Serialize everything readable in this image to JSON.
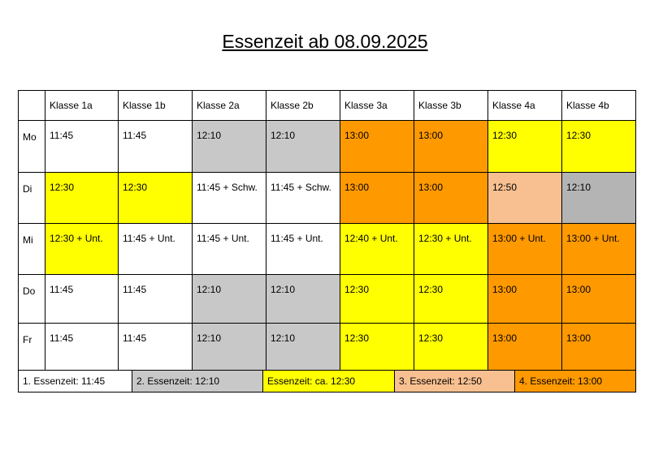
{
  "title": "Essenzeit ab 08.09.2025",
  "table": {
    "columns": [
      "Klasse 1a",
      "Klasse 1b",
      "Klasse 2a",
      "Klasse 2b",
      "Klasse 3a",
      "Klasse 3b",
      "Klasse 4a",
      "Klasse 4b"
    ],
    "rows": [
      {
        "day": "Mo",
        "cells": [
          {
            "text": "11:45",
            "color": "#ffffff"
          },
          {
            "text": "11:45",
            "color": "#ffffff"
          },
          {
            "text": "12:10",
            "color": "#c8c8c8"
          },
          {
            "text": "12:10",
            "color": "#c8c8c8"
          },
          {
            "text": "13:00",
            "color": "#ff9900"
          },
          {
            "text": "13:00",
            "color": "#ff9900"
          },
          {
            "text": "12:30",
            "color": "#ffff00"
          },
          {
            "text": "12:30",
            "color": "#ffff00"
          }
        ]
      },
      {
        "day": "Di",
        "cells": [
          {
            "text": "12:30",
            "color": "#ffff00"
          },
          {
            "text": "12:30",
            "color": "#ffff00"
          },
          {
            "text": "11:45 + Schw.",
            "color": "#ffffff"
          },
          {
            "text": "11:45 + Schw.",
            "color": "#ffffff"
          },
          {
            "text": "13:00",
            "color": "#ff9900"
          },
          {
            "text": "13:00",
            "color": "#ff9900"
          },
          {
            "text": "12:50",
            "color": "#f8c090"
          },
          {
            "text": "12:10",
            "color": "#b4b4b4"
          }
        ]
      },
      {
        "day": "Mi",
        "cells": [
          {
            "text": "12:30 + Unt.",
            "color": "#ffff00"
          },
          {
            "text": "11:45 + Unt.",
            "color": "#ffffff"
          },
          {
            "text": "11:45 + Unt.",
            "color": "#ffffff"
          },
          {
            "text": "11:45 + Unt.",
            "color": "#ffffff"
          },
          {
            "text": "12:40 + Unt.",
            "color": "#ffff00"
          },
          {
            "text": "12:30 + Unt.",
            "color": "#ffff00"
          },
          {
            "text": "13:00 + Unt.",
            "color": "#ff9900"
          },
          {
            "text": "13:00 + Unt.",
            "color": "#ff9900"
          }
        ]
      },
      {
        "day": "Do",
        "cells": [
          {
            "text": "11:45",
            "color": "#ffffff"
          },
          {
            "text": "11:45",
            "color": "#ffffff"
          },
          {
            "text": "12:10",
            "color": "#c8c8c8"
          },
          {
            "text": "12:10",
            "color": "#c8c8c8"
          },
          {
            "text": "12:30",
            "color": "#ffff00"
          },
          {
            "text": "12:30",
            "color": "#ffff00"
          },
          {
            "text": "13:00",
            "color": "#ff9900"
          },
          {
            "text": "13:00",
            "color": "#ff9900"
          }
        ]
      },
      {
        "day": "Fr",
        "cells": [
          {
            "text": "11:45",
            "color": "#ffffff"
          },
          {
            "text": "11:45",
            "color": "#ffffff"
          },
          {
            "text": "12:10",
            "color": "#c8c8c8"
          },
          {
            "text": "12:10",
            "color": "#c8c8c8"
          },
          {
            "text": "12:30",
            "color": "#ffff00"
          },
          {
            "text": "12:30",
            "color": "#ffff00"
          },
          {
            "text": "13:00",
            "color": "#ff9900"
          },
          {
            "text": "13:00",
            "color": "#ff9900"
          }
        ]
      }
    ],
    "legend": [
      {
        "text": "1. Essenzeit: 11:45",
        "color": "#ffffff"
      },
      {
        "text": "2. Essenzeit: 12:10",
        "color": "#c8c8c8"
      },
      {
        "text": "Essenzeit: ca. 12:30",
        "color": "#ffff00"
      },
      {
        "text": "3. Essenzeit: 12:50",
        "color": "#f8c090"
      },
      {
        "text": "4. Essenzeit: 13:00",
        "color": "#ff9900"
      }
    ]
  }
}
